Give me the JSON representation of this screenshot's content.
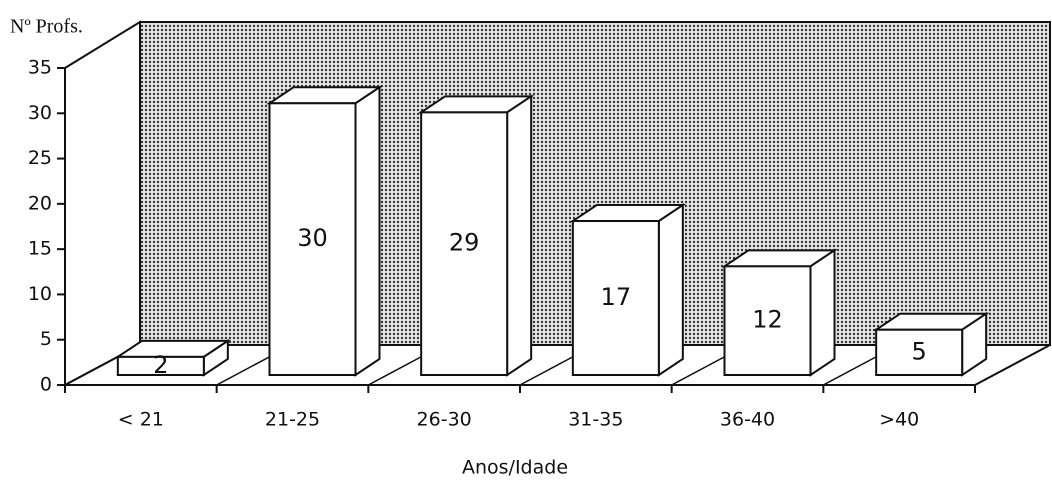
{
  "chart_data": {
    "type": "bar3d",
    "ylabel": "Nº Profs.",
    "xlabel": "Anos/Idade",
    "categories": [
      "< 21",
      "21-25",
      "26-30",
      "31-35",
      "36-40",
      ">40"
    ],
    "values": [
      2,
      30,
      29,
      17,
      12,
      5
    ],
    "color": "#ffffff",
    "ylim": [
      0,
      35
    ],
    "yticks": [
      0,
      5,
      10,
      15,
      20,
      25,
      30,
      35
    ]
  }
}
